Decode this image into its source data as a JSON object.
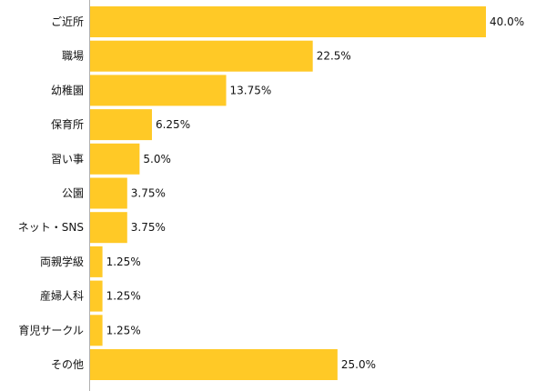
{
  "chart_data": {
    "type": "bar",
    "orientation": "horizontal",
    "categories": [
      "ご近所",
      "職場",
      "幼稚園",
      "保育所",
      "習い事",
      "公園",
      "ネット・SNS",
      "両親学級",
      "産婦人科",
      "育児サークル",
      "その他"
    ],
    "values": [
      40.0,
      22.5,
      13.75,
      6.25,
      5.0,
      3.75,
      3.75,
      1.25,
      1.25,
      1.25,
      25.0
    ],
    "value_labels": [
      "40.0%",
      "22.5%",
      "13.75%",
      "6.25%",
      "5.0%",
      "3.75%",
      "3.75%",
      "1.25%",
      "1.25%",
      "1.25%",
      "25.0%"
    ],
    "xlim": [
      0,
      40
    ],
    "grid": false,
    "colors": {
      "bar": "#ffc926",
      "axis": "#b0b0b0",
      "text": "#111111"
    }
  }
}
